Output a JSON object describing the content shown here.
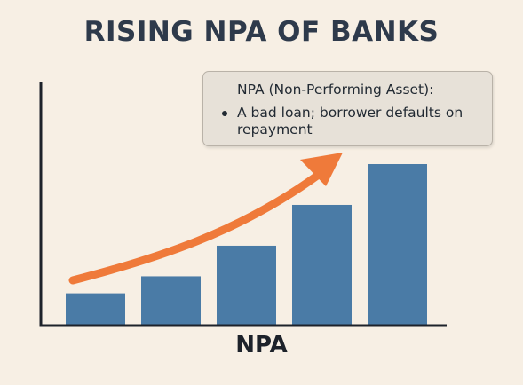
{
  "title": "RISING NPA OF BANKS",
  "callout": {
    "heading": "NPA (Non-Performing Asset):",
    "bullet": "A bad loan; borrower defaults on repayment"
  },
  "colors": {
    "background": "#f7efe4",
    "bar": "#4a7ba6",
    "arrow": "#ef7a3a",
    "axis": "#1d222a",
    "title": "#2e3a4b"
  },
  "chart_data": {
    "type": "bar",
    "title": "RISING NPA OF BANKS",
    "xlabel": "NPA",
    "ylabel": "",
    "categories": [
      "",
      "",
      "",
      "",
      ""
    ],
    "values": [
      19,
      29,
      47,
      71,
      95
    ],
    "ylim": [
      0,
      100
    ],
    "grid": false,
    "legend": "none",
    "trend_arrow": "increasing"
  }
}
